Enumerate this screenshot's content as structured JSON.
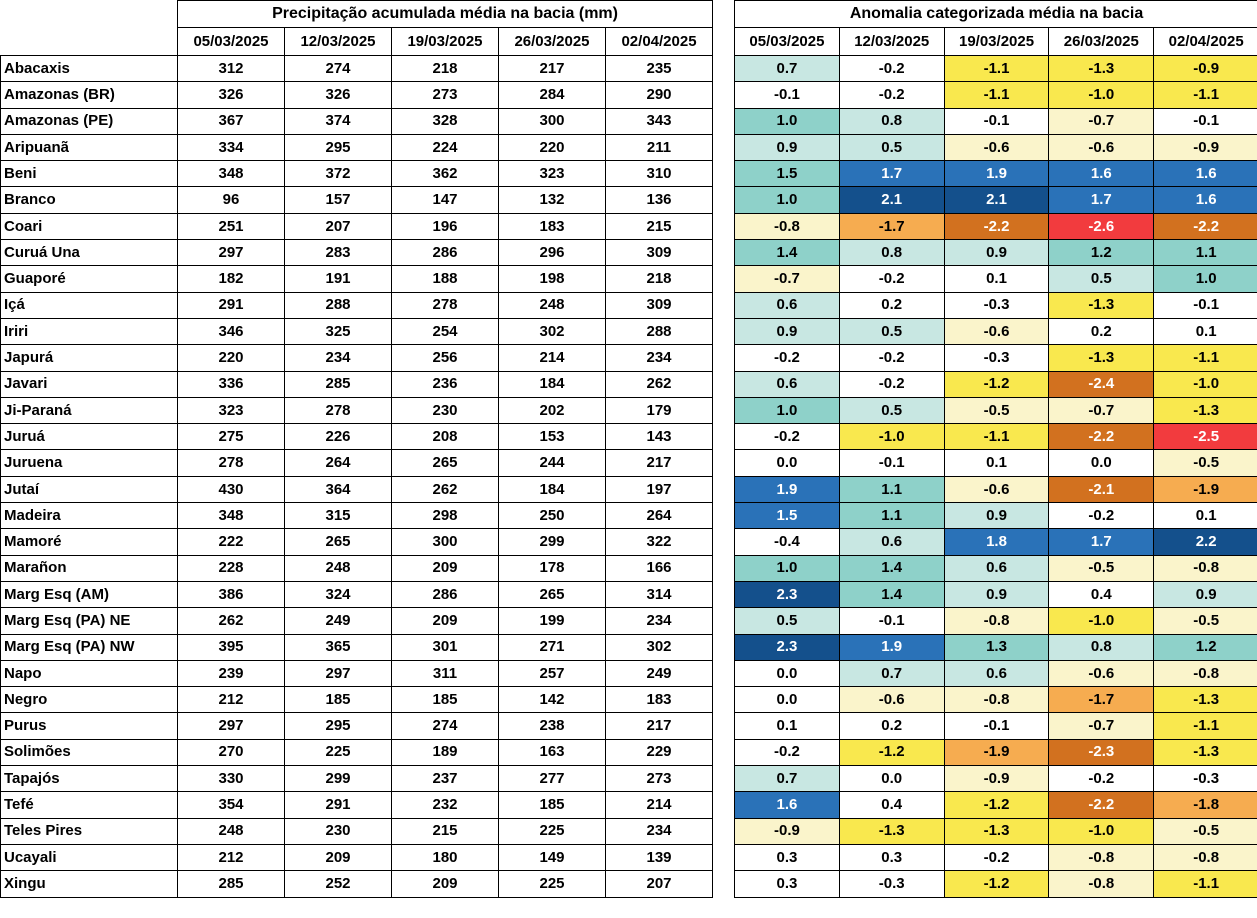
{
  "chart_data": [
    {
      "type": "table",
      "title": "Precipitação acumulada média na bacia (mm)",
      "columns": [
        "05/03/2025",
        "12/03/2025",
        "19/03/2025",
        "26/03/2025",
        "02/04/2025"
      ],
      "rows": [
        {
          "basin": "Abacaxis",
          "values": [
            312,
            274,
            218,
            217,
            235
          ]
        },
        {
          "basin": "Amazonas (BR)",
          "values": [
            326,
            326,
            273,
            284,
            290
          ]
        },
        {
          "basin": "Amazonas (PE)",
          "values": [
            367,
            374,
            328,
            300,
            343
          ]
        },
        {
          "basin": "Aripuanã",
          "values": [
            334,
            295,
            224,
            220,
            211
          ]
        },
        {
          "basin": "Beni",
          "values": [
            348,
            372,
            362,
            323,
            310
          ]
        },
        {
          "basin": "Branco",
          "values": [
            96,
            157,
            147,
            132,
            136
          ]
        },
        {
          "basin": "Coari",
          "values": [
            251,
            207,
            196,
            183,
            215
          ]
        },
        {
          "basin": "Curuá Una",
          "values": [
            297,
            283,
            286,
            296,
            309
          ]
        },
        {
          "basin": "Guaporé",
          "values": [
            182,
            191,
            188,
            198,
            218
          ]
        },
        {
          "basin": "Içá",
          "values": [
            291,
            288,
            278,
            248,
            309
          ]
        },
        {
          "basin": "Iriri",
          "values": [
            346,
            325,
            254,
            302,
            288
          ]
        },
        {
          "basin": "Japurá",
          "values": [
            220,
            234,
            256,
            214,
            234
          ]
        },
        {
          "basin": "Javari",
          "values": [
            336,
            285,
            236,
            184,
            262
          ]
        },
        {
          "basin": "Ji-Paraná",
          "values": [
            323,
            278,
            230,
            202,
            179
          ]
        },
        {
          "basin": "Juruá",
          "values": [
            275,
            226,
            208,
            153,
            143
          ]
        },
        {
          "basin": "Juruena",
          "values": [
            278,
            264,
            265,
            244,
            217
          ]
        },
        {
          "basin": "Jutaí",
          "values": [
            430,
            364,
            262,
            184,
            197
          ]
        },
        {
          "basin": "Madeira",
          "values": [
            348,
            315,
            298,
            250,
            264
          ]
        },
        {
          "basin": "Mamoré",
          "values": [
            222,
            265,
            300,
            299,
            322
          ]
        },
        {
          "basin": "Marañon",
          "values": [
            228,
            248,
            209,
            178,
            166
          ]
        },
        {
          "basin": "Marg Esq (AM)",
          "values": [
            386,
            324,
            286,
            265,
            314
          ]
        },
        {
          "basin": "Marg Esq (PA) NE",
          "values": [
            262,
            249,
            209,
            199,
            234
          ]
        },
        {
          "basin": "Marg Esq (PA) NW",
          "values": [
            395,
            365,
            301,
            271,
            302
          ]
        },
        {
          "basin": "Napo",
          "values": [
            239,
            297,
            311,
            257,
            249
          ]
        },
        {
          "basin": "Negro",
          "values": [
            212,
            185,
            185,
            142,
            183
          ]
        },
        {
          "basin": "Purus",
          "values": [
            297,
            295,
            274,
            238,
            217
          ]
        },
        {
          "basin": "Solimões",
          "values": [
            270,
            225,
            189,
            163,
            229
          ]
        },
        {
          "basin": "Tapajós",
          "values": [
            330,
            299,
            237,
            277,
            273
          ]
        },
        {
          "basin": "Tefé",
          "values": [
            354,
            291,
            232,
            185,
            214
          ]
        },
        {
          "basin": "Teles Pires",
          "values": [
            248,
            230,
            215,
            225,
            234
          ]
        },
        {
          "basin": "Ucayali",
          "values": [
            212,
            209,
            180,
            149,
            139
          ]
        },
        {
          "basin": "Xingu",
          "values": [
            285,
            252,
            209,
            225,
            207
          ]
        }
      ]
    },
    {
      "type": "heatmap",
      "title": "Anomalia categorizada média na bacia",
      "columns": [
        "05/03/2025",
        "12/03/2025",
        "19/03/2025",
        "26/03/2025",
        "02/04/2025"
      ],
      "palette": {
        "white": "#FFFFFF",
        "lightteal": "#C8E7E2",
        "teal": "#8ED1C9",
        "blue": "#2A72B8",
        "darkblue": "#14508C",
        "cream": "#FAF4CB",
        "yellow": "#F9E84E",
        "orange": "#F6AC50",
        "darkorange": "#D2711F",
        "red": "#F23B3E"
      },
      "white_text_on": [
        "blue",
        "darkblue",
        "darkorange",
        "red"
      ],
      "rows": [
        {
          "basin": "Abacaxis",
          "values": [
            0.7,
            -0.2,
            -1.1,
            -1.3,
            -0.9
          ],
          "colors": [
            "lightteal",
            "white",
            "yellow",
            "yellow",
            "yellow"
          ]
        },
        {
          "basin": "Amazonas (BR)",
          "values": [
            -0.1,
            -0.2,
            -1.1,
            -1.0,
            -1.1
          ],
          "colors": [
            "white",
            "white",
            "yellow",
            "yellow",
            "yellow"
          ]
        },
        {
          "basin": "Amazonas (PE)",
          "values": [
            1.0,
            0.8,
            -0.1,
            -0.7,
            -0.1
          ],
          "colors": [
            "teal",
            "lightteal",
            "white",
            "cream",
            "white"
          ]
        },
        {
          "basin": "Aripuanã",
          "values": [
            0.9,
            0.5,
            -0.6,
            -0.6,
            -0.9
          ],
          "colors": [
            "lightteal",
            "lightteal",
            "cream",
            "cream",
            "cream"
          ]
        },
        {
          "basin": "Beni",
          "values": [
            1.5,
            1.7,
            1.9,
            1.6,
            1.6
          ],
          "colors": [
            "teal",
            "blue",
            "blue",
            "blue",
            "blue"
          ]
        },
        {
          "basin": "Branco",
          "values": [
            1.0,
            2.1,
            2.1,
            1.7,
            1.6
          ],
          "colors": [
            "teal",
            "darkblue",
            "darkblue",
            "blue",
            "blue"
          ]
        },
        {
          "basin": "Coari",
          "values": [
            -0.8,
            -1.7,
            -2.2,
            -2.6,
            -2.2
          ],
          "colors": [
            "cream",
            "orange",
            "darkorange",
            "red",
            "darkorange"
          ]
        },
        {
          "basin": "Curuá Una",
          "values": [
            1.4,
            0.8,
            0.9,
            1.2,
            1.1
          ],
          "colors": [
            "teal",
            "lightteal",
            "lightteal",
            "teal",
            "teal"
          ]
        },
        {
          "basin": "Guaporé",
          "values": [
            -0.7,
            -0.2,
            0.1,
            0.5,
            1.0
          ],
          "colors": [
            "cream",
            "white",
            "white",
            "lightteal",
            "teal"
          ]
        },
        {
          "basin": "Içá",
          "values": [
            0.6,
            0.2,
            -0.3,
            -1.3,
            -0.1
          ],
          "colors": [
            "lightteal",
            "white",
            "white",
            "yellow",
            "white"
          ]
        },
        {
          "basin": "Iriri",
          "values": [
            0.9,
            0.5,
            -0.6,
            0.2,
            0.1
          ],
          "colors": [
            "lightteal",
            "lightteal",
            "cream",
            "white",
            "white"
          ]
        },
        {
          "basin": "Japurá",
          "values": [
            -0.2,
            -0.2,
            -0.3,
            -1.3,
            -1.1
          ],
          "colors": [
            "white",
            "white",
            "white",
            "yellow",
            "yellow"
          ]
        },
        {
          "basin": "Javari",
          "values": [
            0.6,
            -0.2,
            -1.2,
            -2.4,
            -1.0
          ],
          "colors": [
            "lightteal",
            "white",
            "yellow",
            "darkorange",
            "yellow"
          ]
        },
        {
          "basin": "Ji-Paraná",
          "values": [
            1.0,
            0.5,
            -0.5,
            -0.7,
            -1.3
          ],
          "colors": [
            "teal",
            "lightteal",
            "cream",
            "cream",
            "yellow"
          ]
        },
        {
          "basin": "Juruá",
          "values": [
            -0.2,
            -1.0,
            -1.1,
            -2.2,
            -2.5
          ],
          "colors": [
            "white",
            "yellow",
            "yellow",
            "darkorange",
            "red"
          ]
        },
        {
          "basin": "Juruena",
          "values": [
            0.0,
            -0.1,
            0.1,
            0.0,
            -0.5
          ],
          "colors": [
            "white",
            "white",
            "white",
            "white",
            "cream"
          ]
        },
        {
          "basin": "Jutaí",
          "values": [
            1.9,
            1.1,
            -0.6,
            -2.1,
            -1.9
          ],
          "colors": [
            "blue",
            "teal",
            "cream",
            "darkorange",
            "orange"
          ]
        },
        {
          "basin": "Madeira",
          "values": [
            1.5,
            1.1,
            0.9,
            -0.2,
            0.1
          ],
          "colors": [
            "blue",
            "teal",
            "lightteal",
            "white",
            "white"
          ]
        },
        {
          "basin": "Mamoré",
          "values": [
            -0.4,
            0.6,
            1.8,
            1.7,
            2.2
          ],
          "colors": [
            "white",
            "lightteal",
            "blue",
            "blue",
            "darkblue"
          ]
        },
        {
          "basin": "Marañon",
          "values": [
            1.0,
            1.4,
            0.6,
            -0.5,
            -0.8
          ],
          "colors": [
            "teal",
            "teal",
            "lightteal",
            "cream",
            "cream"
          ]
        },
        {
          "basin": "Marg Esq (AM)",
          "values": [
            2.3,
            1.4,
            0.9,
            0.4,
            0.9
          ],
          "colors": [
            "darkblue",
            "teal",
            "lightteal",
            "white",
            "lightteal"
          ]
        },
        {
          "basin": "Marg Esq (PA) NE",
          "values": [
            0.5,
            -0.1,
            -0.8,
            -1.0,
            -0.5
          ],
          "colors": [
            "lightteal",
            "white",
            "cream",
            "yellow",
            "cream"
          ]
        },
        {
          "basin": "Marg Esq (PA) NW",
          "values": [
            2.3,
            1.9,
            1.3,
            0.8,
            1.2
          ],
          "colors": [
            "darkblue",
            "blue",
            "teal",
            "lightteal",
            "teal"
          ]
        },
        {
          "basin": "Napo",
          "values": [
            0.0,
            0.7,
            0.6,
            -0.6,
            -0.8
          ],
          "colors": [
            "white",
            "lightteal",
            "lightteal",
            "cream",
            "cream"
          ]
        },
        {
          "basin": "Negro",
          "values": [
            0.0,
            -0.6,
            -0.8,
            -1.7,
            -1.3
          ],
          "colors": [
            "white",
            "cream",
            "cream",
            "orange",
            "yellow"
          ]
        },
        {
          "basin": "Purus",
          "values": [
            0.1,
            0.2,
            -0.1,
            -0.7,
            -1.1
          ],
          "colors": [
            "white",
            "white",
            "white",
            "cream",
            "yellow"
          ]
        },
        {
          "basin": "Solimões",
          "values": [
            -0.2,
            -1.2,
            -1.9,
            -2.3,
            -1.3
          ],
          "colors": [
            "white",
            "yellow",
            "orange",
            "darkorange",
            "yellow"
          ]
        },
        {
          "basin": "Tapajós",
          "values": [
            0.7,
            0.0,
            -0.9,
            -0.2,
            -0.3
          ],
          "colors": [
            "lightteal",
            "white",
            "cream",
            "white",
            "white"
          ]
        },
        {
          "basin": "Tefé",
          "values": [
            1.6,
            0.4,
            -1.2,
            -2.2,
            -1.8
          ],
          "colors": [
            "blue",
            "white",
            "yellow",
            "darkorange",
            "orange"
          ]
        },
        {
          "basin": "Teles Pires",
          "values": [
            -0.9,
            -1.3,
            -1.3,
            -1.0,
            -0.5
          ],
          "colors": [
            "cream",
            "yellow",
            "yellow",
            "yellow",
            "cream"
          ]
        },
        {
          "basin": "Ucayali",
          "values": [
            0.3,
            0.3,
            -0.2,
            -0.8,
            -0.8
          ],
          "colors": [
            "white",
            "white",
            "white",
            "cream",
            "cream"
          ]
        },
        {
          "basin": "Xingu",
          "values": [
            0.3,
            -0.3,
            -1.2,
            -0.8,
            -1.1
          ],
          "colors": [
            "white",
            "white",
            "yellow",
            "cream",
            "yellow"
          ]
        }
      ]
    }
  ]
}
